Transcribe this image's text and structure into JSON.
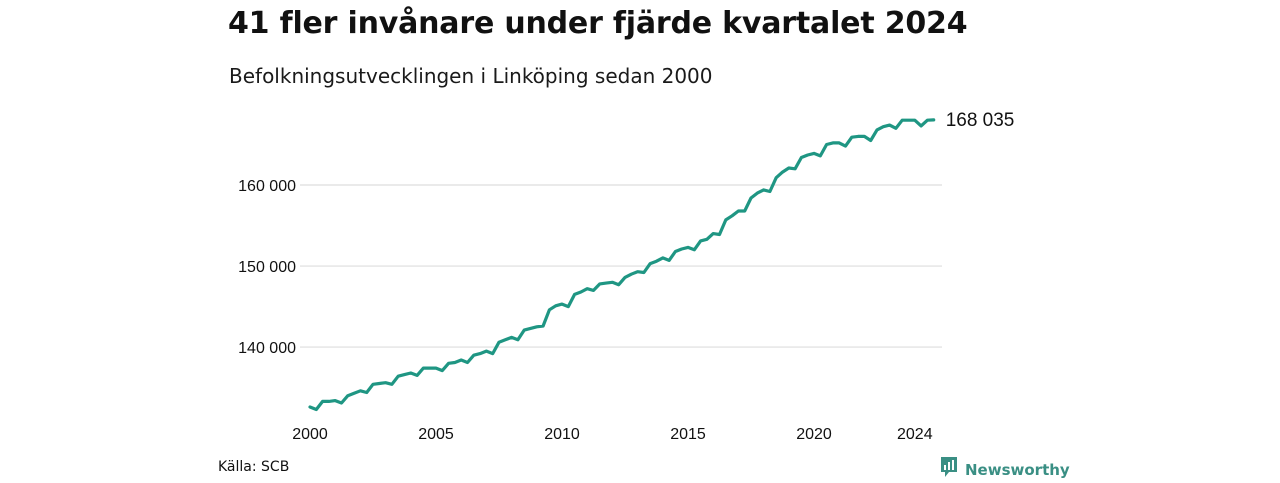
{
  "header": {
    "title": "41 fler invånare under fjärde kvartalet 2024",
    "subtitle": "Befolkningsutvecklingen i Linköping sedan 2000"
  },
  "footer": {
    "source": "Källa: SCB",
    "brand": "Newsworthy",
    "brand_icon": "bar-chart-logo-icon"
  },
  "colors": {
    "line": "#1f9683",
    "grid": "#dddddd",
    "brand": "#3a8f84"
  },
  "chart_data": {
    "type": "line",
    "title": "41 fler invånare under fjärde kvartalet 2024",
    "subtitle": "Befolkningsutvecklingen i Linköping sedan 2000",
    "xlabel": "",
    "ylabel": "",
    "x_ticks": [
      "2000",
      "2005",
      "2010",
      "2015",
      "2020",
      "2024"
    ],
    "y_ticks": [
      "140 000",
      "150 000",
      "160 000"
    ],
    "ylim": [
      131000,
      170000
    ],
    "xlim": [
      2000.0,
      2025.0
    ],
    "grid": true,
    "end_label": "168 035",
    "series": [
      {
        "x": [
          2000.0,
          2000.25,
          2000.5,
          2000.75,
          2001.0,
          2001.25,
          2001.5,
          2001.75,
          2002.0,
          2002.25,
          2002.5,
          2002.75,
          2003.0,
          2003.25,
          2003.5,
          2003.75,
          2004.0,
          2004.25,
          2004.5,
          2004.75,
          2005.0,
          2005.25,
          2005.5,
          2005.75,
          2006.0,
          2006.25,
          2006.5,
          2006.75,
          2007.0,
          2007.25,
          2007.5,
          2007.75,
          2008.0,
          2008.25,
          2008.5,
          2008.75,
          2009.0,
          2009.25,
          2009.5,
          2009.75,
          2010.0,
          2010.25,
          2010.5,
          2010.75,
          2011.0,
          2011.25,
          2011.5,
          2011.75,
          2012.0,
          2012.25,
          2012.5,
          2012.75,
          2013.0,
          2013.25,
          2013.5,
          2013.75,
          2014.0,
          2014.25,
          2014.5,
          2014.75,
          2015.0,
          2015.25,
          2015.5,
          2015.75,
          2016.0,
          2016.25,
          2016.5,
          2016.75,
          2017.0,
          2017.25,
          2017.5,
          2017.75,
          2018.0,
          2018.25,
          2018.5,
          2018.75,
          2019.0,
          2019.25,
          2019.5,
          2019.75,
          2020.0,
          2020.25,
          2020.5,
          2020.75,
          2021.0,
          2021.25,
          2021.5,
          2021.75,
          2022.0,
          2022.25,
          2022.5,
          2022.75,
          2023.0,
          2023.25,
          2023.5,
          2023.75,
          2024.0,
          2024.25,
          2024.5,
          2024.75
        ],
        "values": [
          132600,
          132300,
          133300,
          133300,
          133400,
          133100,
          134000,
          134300,
          134600,
          134400,
          135400,
          135500,
          135600,
          135400,
          136400,
          136600,
          136800,
          136500,
          137400,
          137400,
          137400,
          137100,
          138000,
          138100,
          138400,
          138100,
          139000,
          139200,
          139500,
          139200,
          140600,
          140900,
          141200,
          140900,
          142100,
          142300,
          142500,
          142600,
          144600,
          145100,
          145300,
          145000,
          146500,
          146800,
          147200,
          147000,
          147800,
          147900,
          148000,
          147700,
          148600,
          149000,
          149300,
          149200,
          150300,
          150600,
          151000,
          150700,
          151800,
          152100,
          152300,
          152000,
          153100,
          153300,
          154000,
          153900,
          155700,
          156200,
          156800,
          156800,
          158400,
          159000,
          159400,
          159200,
          160900,
          161600,
          162100,
          162000,
          163400,
          163700,
          163900,
          163600,
          165000,
          165200,
          165200,
          164800,
          165900,
          166000,
          166000,
          165500,
          166800,
          167200,
          167400,
          167000,
          168000,
          168000,
          168000,
          167300,
          168000,
          168035
        ]
      }
    ]
  }
}
